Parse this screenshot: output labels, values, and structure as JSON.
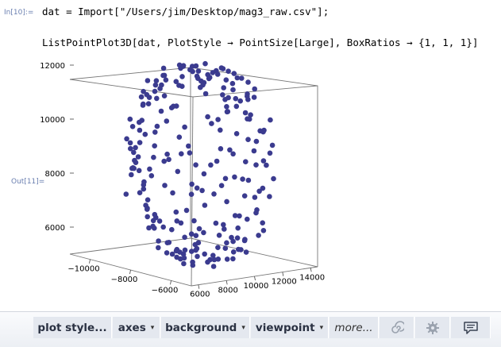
{
  "input_cell": {
    "label": "In[10]:=",
    "line1": "dat = Import[\"/Users/jim/Desktop/mag3_raw.csv\"];",
    "line2": "ListPointPlot3D[dat, PlotStyle → PointSize[Large], BoxRatios → {1, 1, 1}]"
  },
  "output_cell": {
    "label": "Out[11]="
  },
  "toolbar": {
    "plot_style": "plot style...",
    "axes": "axes",
    "background": "background",
    "viewpoint": "viewpoint",
    "more": "more..."
  },
  "chart_data": {
    "type": "scatter",
    "dimensions": 3,
    "title": "",
    "point_color": "#3b3b8f",
    "box_ratios": [
      1,
      1,
      1
    ],
    "z_ticks": [
      "6000",
      "8000",
      "10000",
      "12000"
    ],
    "x_ticks": [
      "−10000",
      "−8000",
      "−6000"
    ],
    "y_ticks": [
      "6000",
      "8000",
      "10000",
      "12000",
      "14000"
    ],
    "zlim": [
      5000,
      12000
    ],
    "xlim": [
      -11000,
      -5000
    ],
    "ylim": [
      5500,
      14500
    ],
    "shape": "points on a roughly spherical shell (raw magnetometer readings)",
    "points": [
      [
        -5300,
        10000,
        8500
      ],
      [
        -5400,
        9500,
        7200
      ],
      [
        -5600,
        11000,
        9800
      ],
      [
        -5700,
        8500,
        6500
      ],
      [
        -5800,
        12000,
        8800
      ],
      [
        -5800,
        10800,
        10600
      ],
      [
        -6000,
        9000,
        10300
      ],
      [
        -6100,
        11700,
        7000
      ],
      [
        -6200,
        8000,
        8100
      ],
      [
        -6300,
        12500,
        9900
      ],
      [
        -6300,
        9800,
        5800
      ],
      [
        -6500,
        10300,
        11300
      ],
      [
        -6600,
        7600,
        9700
      ],
      [
        -6700,
        12800,
        7600
      ],
      [
        -6800,
        8600,
        6000
      ],
      [
        -6900,
        11400,
        11100
      ],
      [
        -7000,
        7300,
        7200
      ],
      [
        -7100,
        13000,
        9000
      ],
      [
        -7200,
        9500,
        11700
      ],
      [
        -7300,
        11800,
        5700
      ],
      [
        -7400,
        7200,
        10500
      ],
      [
        -7500,
        12600,
        10800
      ],
      [
        -7600,
        10200,
        5300
      ],
      [
        -7700,
        7800,
        5900
      ],
      [
        -7800,
        13200,
        7800
      ],
      [
        -7900,
        8800,
        11600
      ],
      [
        -8000,
        11000,
        11800
      ],
      [
        -8100,
        7000,
        8600
      ],
      [
        -8200,
        12400,
        6100
      ],
      [
        -8300,
        9700,
        5200
      ],
      [
        -8400,
        13000,
        10200
      ],
      [
        -8500,
        7500,
        10900
      ],
      [
        -8600,
        10600,
        11900
      ],
      [
        -8700,
        8200,
        6200
      ],
      [
        -8800,
        12800,
        8300
      ],
      [
        -8900,
        9000,
        11400
      ],
      [
        -9000,
        11600,
        5600
      ],
      [
        -9100,
        7300,
        9000
      ],
      [
        -9200,
        12200,
        11000
      ],
      [
        -9300,
        10000,
        5400
      ],
      [
        -9400,
        8400,
        10600
      ],
      [
        -9500,
        12000,
        7000
      ],
      [
        -9600,
        9400,
        6000
      ],
      [
        -9700,
        11200,
        11200
      ],
      [
        -9800,
        8200,
        8200
      ],
      [
        -9900,
        12100,
        9400
      ],
      [
        -10000,
        10100,
        6300
      ],
      [
        -10100,
        9300,
        10700
      ],
      [
        -10200,
        11400,
        8200
      ],
      [
        -10400,
        10000,
        9200
      ],
      [
        -10500,
        10600,
        7600
      ],
      [
        -10600,
        9600,
        8700
      ],
      [
        -6800,
        10400,
        11600
      ],
      [
        -7500,
        11000,
        5500
      ],
      [
        -8200,
        8200,
        11200
      ],
      [
        -8800,
        12600,
        7100
      ],
      [
        -9300,
        9000,
        6300
      ],
      [
        -7000,
        13000,
        8500
      ],
      [
        -6200,
        8400,
        10800
      ],
      [
        -10300,
        11000,
        10000
      ],
      [
        -9000,
        7600,
        7500
      ],
      [
        -7600,
        13300,
        9300
      ],
      [
        -5900,
        10600,
        6100
      ],
      [
        -8400,
        10800,
        5300
      ],
      [
        -9700,
        8600,
        9600
      ],
      [
        -6600,
        11800,
        11300
      ],
      [
        -7300,
        8000,
        5600
      ],
      [
        -8000,
        12800,
        11100
      ],
      [
        -10000,
        12000,
        8400
      ],
      [
        -5500,
        9200,
        9500
      ],
      [
        -6400,
        12600,
        6500
      ],
      [
        -7800,
        7600,
        8900
      ],
      [
        -8600,
        11200,
        11800
      ],
      [
        -9500,
        10600,
        5800
      ],
      [
        -10800,
        10200,
        8800
      ],
      [
        -5700,
        11600,
        8000
      ],
      [
        -6900,
        9400,
        5200
      ],
      [
        -8300,
        13000,
        8800
      ],
      [
        -9100,
        9600,
        11500
      ],
      [
        -7100,
        7200,
        7900
      ],
      [
        -8900,
        7600,
        10200
      ],
      [
        -7700,
        9800,
        11900
      ],
      [
        -6100,
        9600,
        11100
      ],
      [
        -9900,
        9200,
        7600
      ],
      [
        -6700,
        13100,
        8700
      ],
      [
        -8500,
        9200,
        5200
      ],
      [
        -10200,
        10400,
        10800
      ],
      [
        -5400,
        10600,
        7800
      ],
      [
        -7400,
        11600,
        12000
      ],
      [
        -9600,
        11800,
        6400
      ],
      [
        -8100,
        10400,
        5100
      ],
      [
        -6000,
        7900,
        7600
      ],
      [
        -9200,
        13000,
        9600
      ],
      [
        -7900,
        7100,
        10000
      ],
      [
        -10400,
        11400,
        7200
      ],
      [
        -6500,
        11200,
        5600
      ],
      [
        -8700,
        13000,
        7400
      ],
      [
        -7200,
        10200,
        12100
      ],
      [
        -9400,
        7800,
        8600
      ],
      [
        -5600,
        8800,
        8600
      ],
      [
        -8000,
        8800,
        5500
      ],
      [
        -6300,
        13000,
        10300
      ],
      [
        -9800,
        10200,
        11000
      ],
      [
        -10600,
        9400,
        9500
      ],
      [
        -5900,
        12400,
        9200
      ],
      [
        -7000,
        11400,
        5400
      ],
      [
        -8500,
        11800,
        11500
      ],
      [
        -9300,
        8600,
        7100
      ],
      [
        -6400,
        7400,
        9500
      ],
      [
        -7800,
        12400,
        5700
      ],
      [
        -10100,
        8900,
        8300
      ],
      [
        -8200,
        7500,
        9400
      ],
      [
        -6800,
        9000,
        11900
      ],
      [
        -9000,
        12300,
        10800
      ],
      [
        -7500,
        9200,
        5100
      ],
      [
        -5500,
        11400,
        10200
      ],
      [
        -9700,
        12600,
        8000
      ],
      [
        -6600,
        8000,
        6900
      ],
      [
        -8800,
        10400,
        12000
      ],
      [
        -10300,
        9900,
        6600
      ],
      [
        -7300,
        12800,
        11000
      ],
      [
        -8400,
        7000,
        7800
      ],
      [
        -6100,
        11000,
        5600
      ],
      [
        -9500,
        9500,
        11400
      ],
      [
        -7100,
        13200,
        6800
      ],
      [
        -8700,
        8500,
        5700
      ],
      [
        -5800,
        9200,
        11000
      ],
      [
        -10500,
        11000,
        9400
      ],
      [
        -7600,
        10800,
        5200
      ],
      [
        -9200,
        7400,
        8400
      ],
      [
        -6700,
        12000,
        11700
      ],
      [
        -8100,
        13100,
        6400
      ],
      [
        -9900,
        8200,
        10000
      ],
      [
        -6200,
        10200,
        5400
      ],
      [
        -7400,
        8300,
        11700
      ],
      [
        -8900,
        11400,
        5300
      ],
      [
        -10000,
        10800,
        11400
      ],
      [
        -6900,
        7500,
        6800
      ],
      [
        -7900,
        12900,
        10500
      ],
      [
        -9400,
        10100,
        5000
      ],
      [
        -5600,
        10400,
        11400
      ],
      [
        -8600,
        12600,
        9900
      ],
      [
        -6500,
        9000,
        5400
      ],
      [
        -10200,
        9600,
        7400
      ],
      [
        -7200,
        12000,
        6200
      ],
      [
        -9100,
        8000,
        11200
      ],
      [
        -5400,
        8600,
        7800
      ],
      [
        -8300,
        9500,
        12100
      ],
      [
        -9800,
        11400,
        6000
      ],
      [
        -6300,
        11600,
        10600
      ],
      [
        -7700,
        7400,
        6500
      ],
      [
        -8000,
        11600,
        11900
      ],
      [
        -10400,
        10600,
        8300
      ],
      [
        -6000,
        12800,
        8200
      ],
      [
        -9600,
        7800,
        9000
      ],
      [
        -7000,
        9700,
        12000
      ],
      [
        -8500,
        12300,
        6100
      ],
      [
        -6800,
        8200,
        5200
      ],
      [
        -9300,
        11800,
        11600
      ],
      [
        -5700,
        9800,
        6300
      ],
      [
        -8800,
        7200,
        8900
      ],
      [
        -7500,
        13100,
        10100
      ],
      [
        -10000,
        9000,
        9800
      ],
      [
        -6400,
        10000,
        12000
      ],
      [
        -9000,
        10800,
        5600
      ],
      [
        -7300,
        7100,
        9300
      ],
      [
        -8200,
        12000,
        11700
      ],
      [
        -6100,
        9000,
        5500
      ],
      [
        -9700,
        11000,
        10300
      ],
      [
        -7900,
        10000,
        5400
      ],
      [
        -10100,
        12000,
        9000
      ],
      [
        -5900,
        7700,
        8800
      ],
      [
        -8400,
        8400,
        11900
      ],
      [
        -6600,
        12600,
        6000
      ],
      [
        -9400,
        7200,
        7400
      ],
      [
        -7100,
        11800,
        11800
      ],
      [
        -8700,
        9800,
        5000
      ],
      [
        -5500,
        12000,
        9600
      ],
      [
        -10300,
        8800,
        9000
      ],
      [
        -7600,
        8600,
        12000
      ],
      [
        -9100,
        12800,
        8100
      ],
      [
        -6200,
        12800,
        7500
      ],
      [
        -8000,
        7300,
        6800
      ],
      [
        -9900,
        10600,
        11700
      ],
      [
        -6900,
        10800,
        5200
      ],
      [
        -8600,
        13100,
        10600
      ],
      [
        -7400,
        7900,
        11000
      ],
      [
        -10500,
        10000,
        10300
      ],
      [
        -5800,
        11800,
        6400
      ],
      [
        -9200,
        9200,
        5300
      ],
      [
        -7800,
        11800,
        12000
      ],
      [
        -6500,
        7700,
        8300
      ],
      [
        -8900,
        12000,
        5700
      ],
      [
        -10200,
        11600,
        10100
      ],
      [
        -7000,
        8400,
        6300
      ],
      [
        -8300,
        10600,
        12100
      ],
      [
        -9600,
        9000,
        6700
      ],
      [
        -6300,
        9600,
        11500
      ],
      [
        -7700,
        13200,
        7200
      ],
      [
        -10700,
        10000,
        7800
      ],
      [
        -5600,
        9600,
        10200
      ],
      [
        -8100,
        9200,
        5100
      ],
      [
        -9300,
        12400,
        11200
      ],
      [
        -6700,
        11000,
        12100
      ],
      [
        -7200,
        7600,
        5700
      ],
      [
        -10000,
        9600,
        11300
      ],
      [
        -8800,
        11000,
        5100
      ],
      [
        -6000,
        10800,
        10800
      ],
      [
        -9500,
        12400,
        7200
      ],
      [
        -7500,
        8600,
        5300
      ],
      [
        -8400,
        11400,
        12100
      ],
      [
        -10400,
        9200,
        8000
      ],
      [
        -6200,
        7800,
        6700
      ],
      [
        -9000,
        8800,
        10900
      ],
      [
        -7900,
        12200,
        5500
      ],
      [
        -5300,
        9800,
        9200
      ],
      [
        -8600,
        7700,
        11100
      ],
      [
        -6800,
        13000,
        9800
      ],
      [
        -9800,
        9400,
        5900
      ],
      [
        -7100,
        9000,
        12000
      ],
      [
        -8200,
        13200,
        7800
      ],
      [
        -10300,
        10600,
        11000
      ],
      [
        -6600,
        9400,
        5100
      ],
      [
        -7600,
        11400,
        12100
      ],
      [
        -9400,
        11400,
        5000
      ],
      [
        -5500,
        10200,
        7000
      ],
      [
        -8900,
        8000,
        6600
      ],
      [
        -6400,
        12000,
        11200
      ],
      [
        -10100,
        10600,
        6000
      ],
      [
        -7300,
        12400,
        11700
      ],
      [
        -8000,
        9900,
        12200
      ],
      [
        -9700,
        8000,
        8000
      ],
      [
        -6900,
        11600,
        5500
      ],
      [
        -8500,
        7400,
        7000
      ],
      [
        -10600,
        10400,
        10600
      ],
      [
        -7800,
        9000,
        5000
      ],
      [
        -9200,
        11000,
        11900
      ],
      [
        -6100,
        11600,
        11600
      ],
      [
        -8300,
        12600,
        5900
      ],
      [
        -5700,
        8600,
        9700
      ],
      [
        -9900,
        11600,
        7800
      ],
      [
        -7400,
        10600,
        5100
      ],
      [
        -8700,
        10000,
        12100
      ],
      [
        -10200,
        8400,
        9200
      ],
      [
        -6500,
        10600,
        11800
      ],
      [
        -7000,
        12200,
        5800
      ]
    ]
  }
}
